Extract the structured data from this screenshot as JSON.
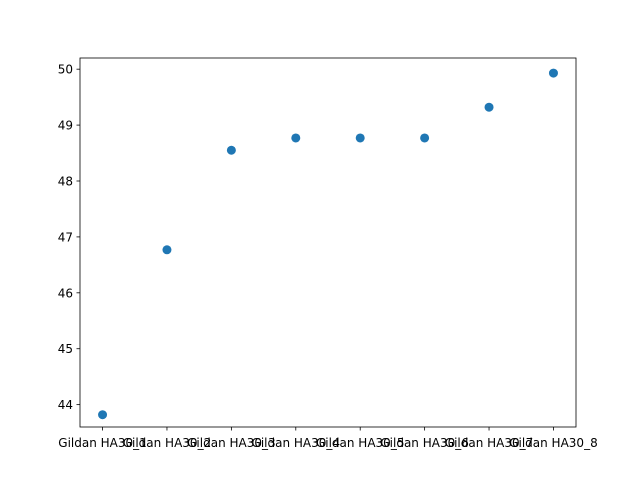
{
  "chart_data": {
    "type": "scatter",
    "title": "",
    "xlabel": "",
    "ylabel": "",
    "categories": [
      "Gildan HA30_1",
      "Gildan HA30_2",
      "Gildan HA30_3",
      "Gildan HA30_4",
      "Gildan HA30_5",
      "Gildan HA30_6",
      "Gildan HA30_7",
      "Gildan HA30_8"
    ],
    "series": [
      {
        "values": [
          43.82,
          46.77,
          48.55,
          48.77,
          48.77,
          48.77,
          49.32,
          49.93
        ],
        "color": "#1f77b4"
      }
    ],
    "ylim": [
      43.6,
      50.2
    ],
    "yticks": [
      44,
      45,
      46,
      47,
      48,
      49,
      50
    ],
    "grid": false,
    "legend": "none"
  }
}
